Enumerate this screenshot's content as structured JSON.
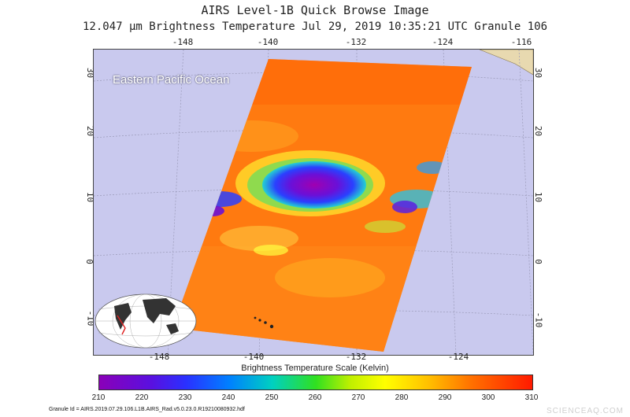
{
  "header": {
    "title": "AIRS Level-1B Quick Browse Image",
    "subtitle": "12.047 μm Brightness Temperature   Jul 29, 2019 10:35:21 UTC   Granule 106"
  },
  "map": {
    "region_label": "Eastern Pacific Ocean",
    "lon_ticks_top": [
      "-148",
      "-140",
      "-132",
      "-124",
      "-116"
    ],
    "lon_ticks_bottom": [
      "-148",
      "-140",
      "-132",
      "-124"
    ],
    "lat_ticks_left": [
      "30",
      "20",
      "10",
      "0",
      "-10"
    ],
    "lat_ticks_right": [
      "30",
      "20",
      "10",
      "0",
      "-10"
    ]
  },
  "colorbar": {
    "label": "Brightness Temperature Scale (Kelvin)",
    "ticks": [
      "210",
      "220",
      "230",
      "240",
      "250",
      "260",
      "270",
      "280",
      "290",
      "300",
      "310"
    ]
  },
  "footer": {
    "granule_id": "Granule Id = AIRS.2019.07.29.106.L1B.AIRS_Rad.v5.0.23.0.R19210080932.hdf",
    "watermark": "SCIENCEAQ.COM"
  },
  "colors": {
    "ocean": "#c9c9ee",
    "warm": "#ff7a10",
    "cold": "#7a10d0"
  }
}
